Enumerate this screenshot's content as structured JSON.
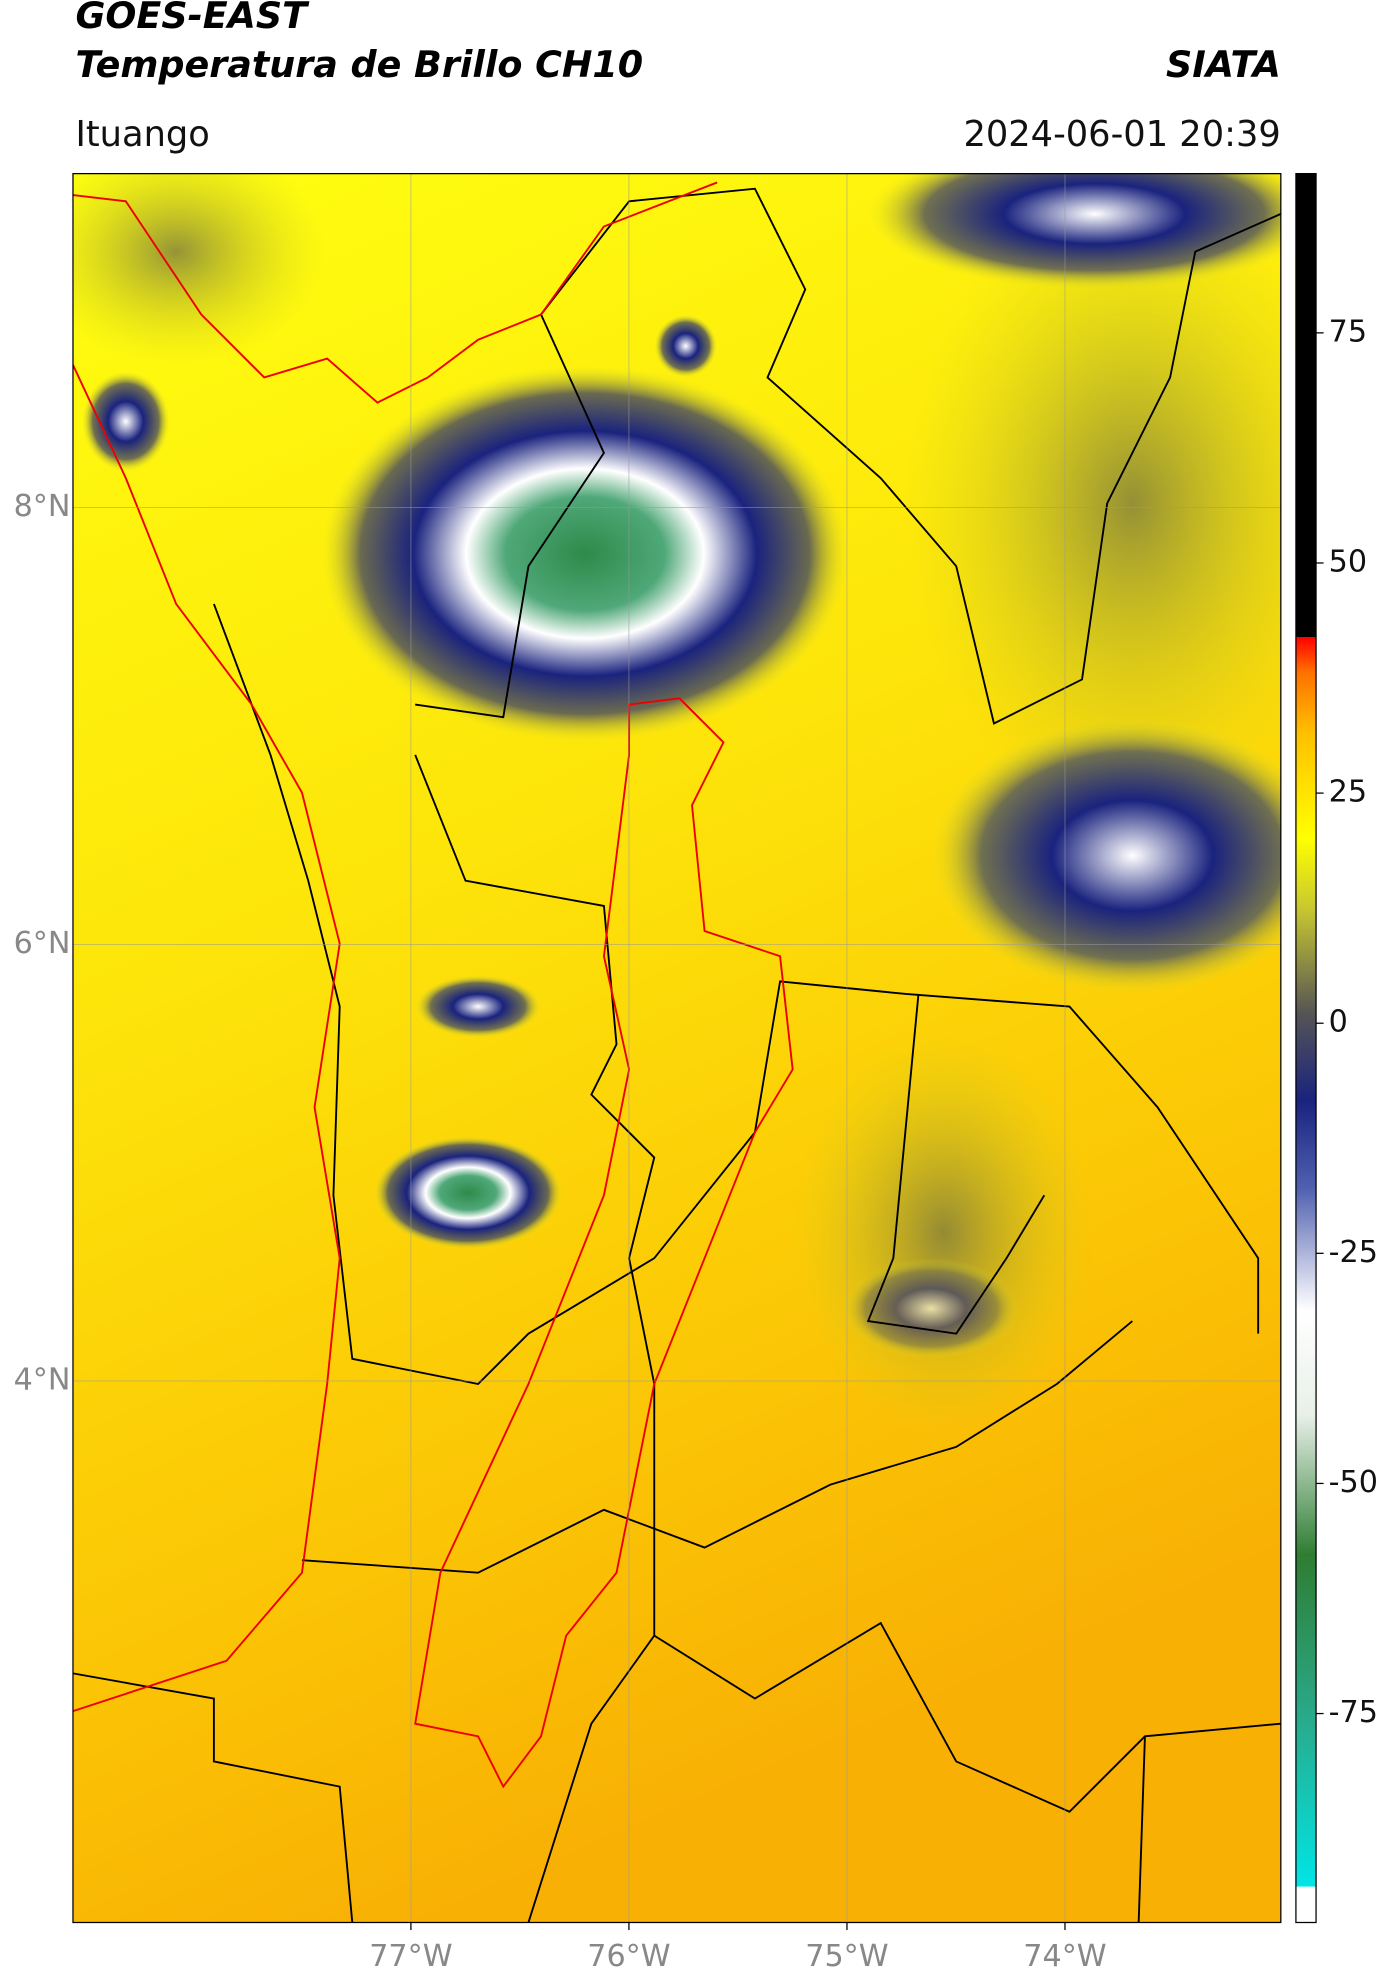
{
  "header": {
    "title": "GOES-EAST",
    "subtitle": "Temperatura de Brillo CH10",
    "source": "SIATA",
    "location": "Ituango",
    "datetime": "2024-06-01 20:39"
  },
  "map": {
    "lat_lim": [
      1.52,
      9.53
    ],
    "lon_lim": [
      -78.55,
      -73.01
    ],
    "grid": true,
    "lat_ticks": [
      {
        "value": 8,
        "label": "8°N"
      },
      {
        "value": 6,
        "label": "6°N"
      },
      {
        "value": 4,
        "label": "4°N"
      }
    ],
    "lon_ticks": [
      {
        "value": -77,
        "label": "77°W"
      },
      {
        "value": -76,
        "label": "76°W"
      },
      {
        "value": -75,
        "label": "75°W"
      },
      {
        "value": -74,
        "label": "74°W"
      }
    ]
  },
  "colorbar": {
    "lim": [
      -97.7,
      92.3
    ],
    "ticks": [
      75,
      50,
      25,
      0,
      -25,
      -50,
      -75
    ]
  }
}
